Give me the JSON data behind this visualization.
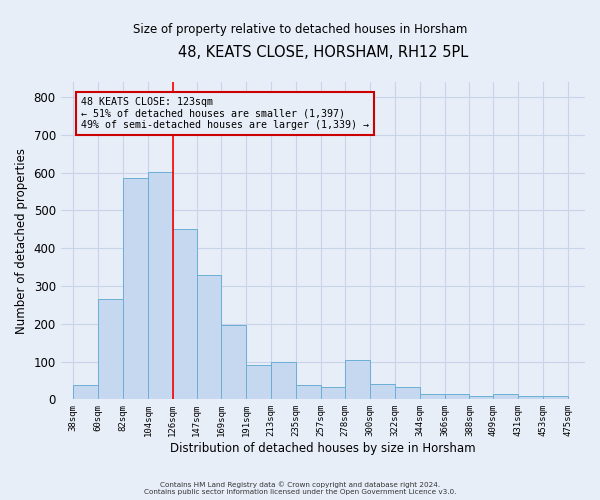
{
  "title": "48, KEATS CLOSE, HORSHAM, RH12 5PL",
  "subtitle": "Size of property relative to detached houses in Horsham",
  "xlabel": "Distribution of detached houses by size in Horsham",
  "ylabel": "Number of detached properties",
  "bar_left_edges": [
    38,
    60,
    82,
    104,
    126,
    147,
    169,
    191,
    213,
    235,
    257,
    278,
    300,
    322,
    344,
    366,
    388,
    409,
    431,
    453
  ],
  "bar_heights": [
    38,
    265,
    585,
    603,
    452,
    330,
    196,
    90,
    100,
    38,
    32,
    103,
    40,
    32,
    13,
    13,
    10,
    13,
    10,
    10
  ],
  "bar_widths": [
    22,
    22,
    22,
    22,
    21,
    22,
    22,
    22,
    22,
    22,
    21,
    22,
    22,
    22,
    22,
    22,
    21,
    22,
    22,
    22
  ],
  "tick_labels": [
    "38sqm",
    "60sqm",
    "82sqm",
    "104sqm",
    "126sqm",
    "147sqm",
    "169sqm",
    "191sqm",
    "213sqm",
    "235sqm",
    "257sqm",
    "278sqm",
    "300sqm",
    "322sqm",
    "344sqm",
    "366sqm",
    "388sqm",
    "409sqm",
    "431sqm",
    "453sqm",
    "475sqm"
  ],
  "tick_positions": [
    38,
    60,
    82,
    104,
    126,
    147,
    169,
    191,
    213,
    235,
    257,
    278,
    300,
    322,
    344,
    366,
    388,
    409,
    431,
    453,
    475
  ],
  "bar_color": "#c5d8ef",
  "bar_edge_color": "#6baed6",
  "vline_x": 126,
  "vline_color": "red",
  "ylim": [
    0,
    840
  ],
  "xlim": [
    27,
    490
  ],
  "annotation_text_line1": "48 KEATS CLOSE: 123sqm",
  "annotation_text_line2": "← 51% of detached houses are smaller (1,397)",
  "annotation_text_line3": "49% of semi-detached houses are larger (1,339) →",
  "annotation_box_color": "#cc0000",
  "grid_color": "#c8d4e8",
  "bg_color": "#e8eef8",
  "footer_line1": "Contains HM Land Registry data © Crown copyright and database right 2024.",
  "footer_line2": "Contains public sector information licensed under the Open Government Licence v3.0.",
  "yticks": [
    0,
    100,
    200,
    300,
    400,
    500,
    600,
    700,
    800
  ]
}
